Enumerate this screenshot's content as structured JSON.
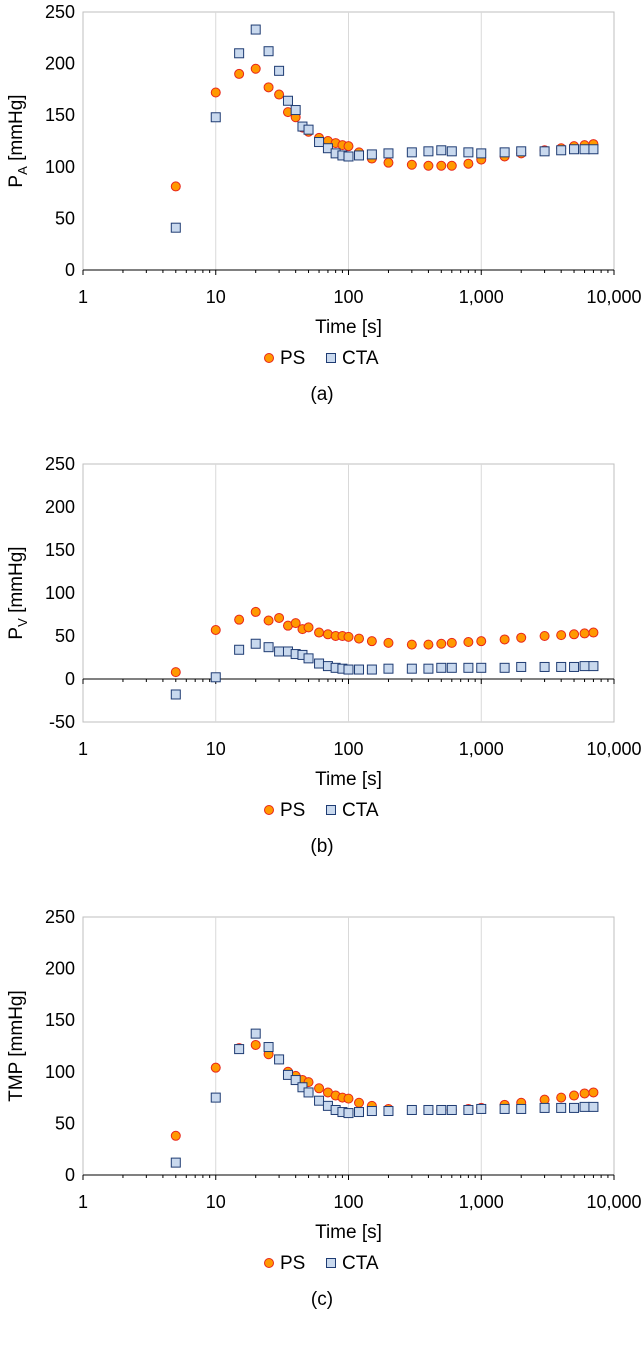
{
  "chart_data": [
    {
      "type": "scatter",
      "caption": "(a)",
      "xlabel": "Time [s]",
      "ylabel": "P",
      "ylabel_sub": "A",
      "ylabel_unit": "[mmHg]",
      "xscale": "log",
      "xlim": [
        1,
        10000
      ],
      "ylim": [
        0,
        250
      ],
      "yticks": [
        0,
        50,
        100,
        150,
        200,
        250
      ],
      "xticks": [
        1,
        10,
        100,
        1000,
        10000
      ],
      "xtick_labels": [
        "1",
        "10",
        "100",
        "1,000",
        "10,000"
      ],
      "grid": "vertical-major",
      "legend": "bottom-center",
      "series": [
        {
          "name": "PS",
          "marker": "circle",
          "fill": "#FF9900",
          "stroke": "#E8261A",
          "x": [
            5,
            10,
            15,
            20,
            25,
            30,
            35,
            40,
            45,
            50,
            60,
            70,
            80,
            90,
            100,
            120,
            150,
            200,
            300,
            400,
            500,
            600,
            800,
            1000,
            1500,
            2000,
            3000,
            4000,
            5000,
            6000,
            7000
          ],
          "y": [
            81,
            172,
            190,
            195,
            177,
            170,
            153,
            148,
            138,
            134,
            128,
            125,
            123,
            121,
            120,
            114,
            108,
            104,
            102,
            101,
            101,
            101,
            103,
            107,
            110,
            113,
            116,
            118,
            120,
            121,
            122
          ]
        },
        {
          "name": "CTA",
          "marker": "square",
          "fill": "#C9D9EE",
          "stroke": "#1F3C73",
          "x": [
            5,
            10,
            15,
            20,
            25,
            30,
            35,
            40,
            45,
            50,
            60,
            70,
            80,
            90,
            100,
            120,
            150,
            200,
            300,
            400,
            500,
            600,
            800,
            1000,
            1500,
            2000,
            3000,
            4000,
            5000,
            6000,
            7000
          ],
          "y": [
            41,
            148,
            210,
            233,
            212,
            193,
            164,
            155,
            139,
            136,
            124,
            118,
            113,
            111,
            110,
            111,
            112,
            113,
            114,
            115,
            116,
            115,
            114,
            113,
            114,
            115,
            115,
            116,
            117,
            117,
            117
          ]
        }
      ]
    },
    {
      "type": "scatter",
      "caption": "(b)",
      "xlabel": "Time [s]",
      "ylabel": "P",
      "ylabel_sub": "V",
      "ylabel_unit": "[mmHg]",
      "xscale": "log",
      "xlim": [
        1,
        10000
      ],
      "ylim": [
        -50,
        250
      ],
      "yticks": [
        -50,
        0,
        50,
        100,
        150,
        200,
        250
      ],
      "xticks": [
        1,
        10,
        100,
        1000,
        10000
      ],
      "xtick_labels": [
        "1",
        "10",
        "100",
        "1,000",
        "10,000"
      ],
      "grid": "vertical-major",
      "legend": "bottom-center",
      "series": [
        {
          "name": "PS",
          "marker": "circle",
          "fill": "#FF9900",
          "stroke": "#E8261A",
          "x": [
            5,
            10,
            15,
            20,
            25,
            30,
            35,
            40,
            45,
            50,
            60,
            70,
            80,
            90,
            100,
            120,
            150,
            200,
            300,
            400,
            500,
            600,
            800,
            1000,
            1500,
            2000,
            3000,
            4000,
            5000,
            6000,
            7000
          ],
          "y": [
            8,
            57,
            69,
            78,
            68,
            71,
            62,
            65,
            58,
            60,
            54,
            52,
            50,
            50,
            49,
            47,
            44,
            42,
            40,
            40,
            41,
            42,
            43,
            44,
            46,
            48,
            50,
            51,
            52,
            53,
            54
          ]
        },
        {
          "name": "CTA",
          "marker": "square",
          "fill": "#C9D9EE",
          "stroke": "#1F3C73",
          "x": [
            5,
            10,
            15,
            20,
            25,
            30,
            35,
            40,
            45,
            50,
            60,
            70,
            80,
            90,
            100,
            120,
            150,
            200,
            300,
            400,
            500,
            600,
            800,
            1000,
            1500,
            2000,
            3000,
            4000,
            5000,
            6000,
            7000
          ],
          "y": [
            -18,
            2,
            34,
            41,
            37,
            32,
            32,
            29,
            28,
            24,
            18,
            15,
            13,
            12,
            11,
            11,
            11,
            12,
            12,
            12,
            13,
            13,
            13,
            13,
            13,
            14,
            14,
            14,
            14,
            15,
            15
          ]
        }
      ]
    },
    {
      "type": "scatter",
      "caption": "(c)",
      "xlabel": "Time [s]",
      "ylabel": "TMP [mmHg]",
      "ylabel_sub": "",
      "ylabel_unit": "",
      "xscale": "log",
      "xlim": [
        1,
        10000
      ],
      "ylim": [
        0,
        250
      ],
      "yticks": [
        0,
        50,
        100,
        150,
        200,
        250
      ],
      "xticks": [
        1,
        10,
        100,
        1000,
        10000
      ],
      "xtick_labels": [
        "1",
        "10",
        "100",
        "1,000",
        "10,000"
      ],
      "grid": "vertical-major",
      "legend": "bottom-center",
      "series": [
        {
          "name": "PS",
          "marker": "circle",
          "fill": "#FF9900",
          "stroke": "#E8261A",
          "x": [
            5,
            10,
            15,
            20,
            25,
            30,
            35,
            40,
            45,
            50,
            60,
            70,
            80,
            90,
            100,
            120,
            150,
            200,
            300,
            400,
            500,
            600,
            800,
            1000,
            1500,
            2000,
            3000,
            4000,
            5000,
            6000,
            7000
          ],
          "y": [
            38,
            104,
            123,
            126,
            117,
            112,
            100,
            96,
            92,
            90,
            84,
            80,
            77,
            75,
            74,
            70,
            67,
            64,
            63,
            63,
            63,
            63,
            64,
            65,
            68,
            70,
            73,
            75,
            77,
            79,
            80
          ]
        },
        {
          "name": "CTA",
          "marker": "square",
          "fill": "#C9D9EE",
          "stroke": "#1F3C73",
          "x": [
            5,
            10,
            15,
            20,
            25,
            30,
            35,
            40,
            45,
            50,
            60,
            70,
            80,
            90,
            100,
            120,
            150,
            200,
            300,
            400,
            500,
            600,
            800,
            1000,
            1500,
            2000,
            3000,
            4000,
            5000,
            6000,
            7000
          ],
          "y": [
            12,
            75,
            122,
            137,
            124,
            112,
            97,
            92,
            85,
            80,
            72,
            67,
            63,
            61,
            60,
            61,
            62,
            62,
            63,
            63,
            63,
            63,
            63,
            64,
            64,
            64,
            65,
            65,
            65,
            66,
            66
          ]
        }
      ]
    }
  ]
}
